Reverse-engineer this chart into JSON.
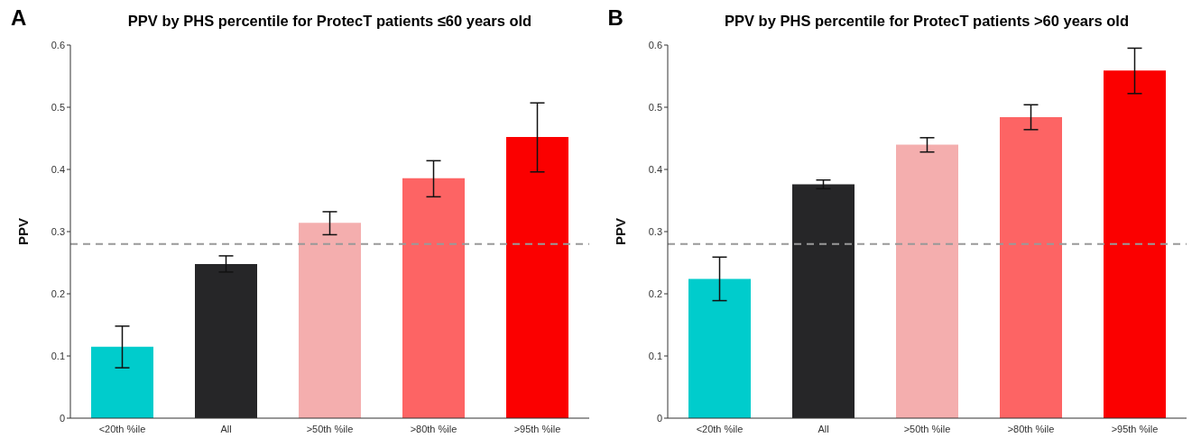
{
  "chart_data": [
    {
      "type": "bar",
      "title": "PPV by PHS percentile for ProtecT patients ≤60 years old",
      "ylabel": "PPV",
      "annotations": [
        "A"
      ],
      "categories": [
        "<20th %ile",
        "All",
        ">50th %ile",
        ">80th %ile",
        ">95th %ile"
      ],
      "values": [
        0.115,
        0.248,
        0.314,
        0.386,
        0.452
      ],
      "colors": [
        "#00cccc",
        "#262628",
        "#f4aeae",
        "#fd6464",
        "#fb0000"
      ],
      "errors": [
        [
          0.081,
          0.148
        ],
        [
          0.235,
          0.261
        ],
        [
          0.295,
          0.332
        ],
        [
          0.356,
          0.414
        ],
        [
          0.396,
          0.507
        ]
      ],
      "ylim": [
        0,
        0.6
      ],
      "yticks": [
        0,
        0.1,
        0.2,
        0.3,
        0.4,
        0.5,
        0.6
      ],
      "grid": false,
      "legend": false,
      "ref_lines": [
        {
          "axis": "y",
          "value": 0.28,
          "color": "#999999",
          "line_style": "dashed"
        }
      ]
    },
    {
      "type": "bar",
      "title": "PPV by PHS percentile for ProtecT patients >60 years old",
      "ylabel": "PPV",
      "annotations": [
        "B"
      ],
      "categories": [
        "<20th %ile",
        "All",
        ">50th %ile",
        ">80th %ile",
        ">95th %ile"
      ],
      "values": [
        0.224,
        0.376,
        0.44,
        0.484,
        0.559
      ],
      "colors": [
        "#00cccc",
        "#262628",
        "#f4aeae",
        "#fd6464",
        "#fb0000"
      ],
      "errors": [
        [
          0.189,
          0.259
        ],
        [
          0.369,
          0.383
        ],
        [
          0.428,
          0.451
        ],
        [
          0.464,
          0.504
        ],
        [
          0.522,
          0.595
        ]
      ],
      "ylim": [
        0,
        0.6
      ],
      "yticks": [
        0,
        0.1,
        0.2,
        0.3,
        0.4,
        0.5,
        0.6
      ],
      "grid": false,
      "legend": false,
      "ref_lines": [
        {
          "axis": "y",
          "value": 0.28,
          "color": "#999999",
          "line_style": "dashed"
        }
      ]
    }
  ]
}
